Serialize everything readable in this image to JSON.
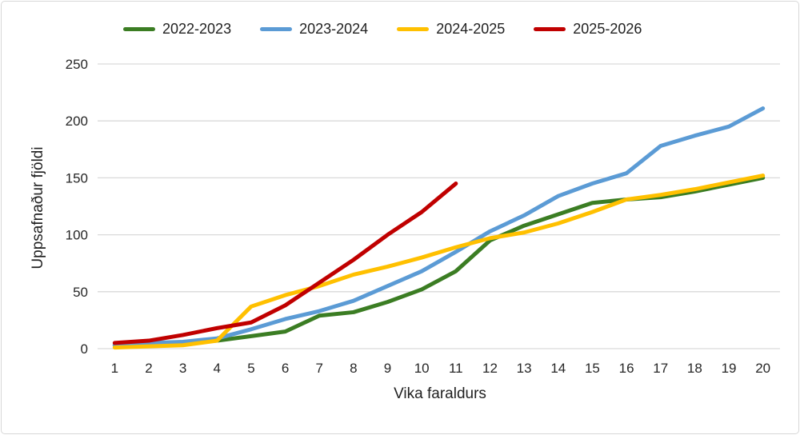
{
  "chart_data": {
    "type": "line",
    "title": "",
    "xlabel": "Vika faraldurs",
    "ylabel": "Uppsafnaður fjöldi",
    "x": [
      1,
      2,
      3,
      4,
      5,
      6,
      7,
      8,
      9,
      10,
      11,
      12,
      13,
      14,
      15,
      16,
      17,
      18,
      19,
      20
    ],
    "ylim": [
      0,
      250
    ],
    "yticks": [
      0,
      50,
      100,
      150,
      200,
      250
    ],
    "grid": "horizontal",
    "legend_position": "top",
    "series": [
      {
        "name": "2022-2023",
        "color": "#3B7D23",
        "values": [
          3,
          4,
          5,
          7,
          11,
          15,
          29,
          32,
          41,
          52,
          68,
          95,
          108,
          118,
          128,
          131,
          133,
          138,
          144,
          150
        ]
      },
      {
        "name": "2023-2024",
        "color": "#5B9BD5",
        "values": [
          3,
          5,
          6,
          9,
          17,
          26,
          33,
          42,
          55,
          68,
          85,
          103,
          117,
          134,
          145,
          154,
          178,
          187,
          195,
          211
        ]
      },
      {
        "name": "2024-2025",
        "color": "#FFC000",
        "values": [
          1,
          2,
          3,
          7,
          37,
          47,
          55,
          65,
          72,
          80,
          89,
          97,
          102,
          110,
          120,
          131,
          135,
          140,
          146,
          152
        ]
      },
      {
        "name": "2025-2026",
        "color": "#C00000",
        "values": [
          5,
          7,
          12,
          18,
          23,
          38,
          58,
          78,
          100,
          120,
          145
        ]
      }
    ]
  },
  "colors": {
    "grid": "#D9D9D9",
    "border": "#D8D8D8",
    "text": "#262626",
    "background": "#FFFFFF"
  }
}
